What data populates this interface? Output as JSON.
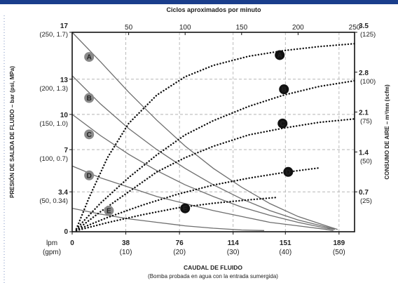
{
  "chart_data": {
    "type": "line",
    "title_top": "Ciclos aproximados por minuto",
    "top_axis_ticks": [
      "50",
      "100",
      "150",
      "200",
      "250"
    ],
    "top_axis_values": [
      50,
      100,
      150,
      200,
      250
    ],
    "top_axis_range": [
      0,
      250
    ],
    "xlabel": "CAUDAL DE FLUIDO",
    "xlabel_sub": "(Bomba probada en agua con la entrada sumergida)",
    "x_unit_label": "lpm",
    "x_unit_label_sub": "(gpm)",
    "x_range": [
      0,
      200
    ],
    "x_ticks": [
      {
        "value": 0,
        "label": "0",
        "sub": ""
      },
      {
        "value": 38,
        "label": "38",
        "sub": "(10)"
      },
      {
        "value": 76,
        "label": "76",
        "sub": "(20)"
      },
      {
        "value": 114,
        "label": "114",
        "sub": "(30)"
      },
      {
        "value": 151,
        "label": "151",
        "sub": "(40)"
      },
      {
        "value": 189,
        "label": "189",
        "sub": "(50)"
      }
    ],
    "ylabel_left": "PRESIÓN DE SALIDA DE FLUIDO – bar (psi, MPa)",
    "y_range_left": [
      0,
      17
    ],
    "y_ticks_left": [
      {
        "value": 0,
        "label": "0",
        "sub": ""
      },
      {
        "value": 3.4,
        "label": "3.4",
        "sub": "(50, 0.34)"
      },
      {
        "value": 7,
        "label": "7",
        "sub": "(100, 0.7)"
      },
      {
        "value": 10,
        "label": "10",
        "sub": "(150, 1.0)"
      },
      {
        "value": 13,
        "label": "13",
        "sub": "(200, 1.3)"
      },
      {
        "value": 17,
        "label": "17",
        "sub": "(250, 1.7)"
      }
    ],
    "ylabel_right": "CONSUMO DE AIRE – m³/mn (scfm)",
    "y_range_right": [
      0,
      3.5
    ],
    "y_ticks_right": [
      {
        "value": 0.7,
        "label": "0.7",
        "sub": "(25)"
      },
      {
        "value": 1.4,
        "label": "1.4",
        "sub": "(50)"
      },
      {
        "value": 2.1,
        "label": "2.1",
        "sub": "(75)"
      },
      {
        "value": 2.8,
        "label": "2.8",
        "sub": "(100)"
      },
      {
        "value": 3.5,
        "label": "3.5",
        "sub": "(125)"
      }
    ],
    "grid": true,
    "pressure_series": [
      {
        "name": "A",
        "x": [
          0,
          20,
          40,
          60,
          80,
          100,
          120,
          140,
          160,
          180,
          188
        ],
        "y": [
          17,
          14.5,
          11.9,
          9.5,
          7.3,
          5.4,
          3.8,
          2.4,
          1.3,
          0.5,
          0.2
        ],
        "label_at": [
          12,
          14.9
        ]
      },
      {
        "name": "B",
        "x": [
          0,
          20,
          40,
          60,
          80,
          100,
          120,
          140,
          160,
          180,
          186
        ],
        "y": [
          13.3,
          10.9,
          8.8,
          7.0,
          5.4,
          4.0,
          2.8,
          1.8,
          1.0,
          0.4,
          0.2
        ],
        "label_at": [
          12,
          11.4
        ]
      },
      {
        "name": "C",
        "x": [
          0,
          20,
          40,
          60,
          80,
          100,
          120,
          140,
          160,
          180,
          186
        ],
        "y": [
          10,
          8.2,
          6.6,
          5.2,
          4.0,
          3.0,
          2.1,
          1.4,
          0.8,
          0.3,
          0.2
        ],
        "label_at": [
          12,
          8.3
        ]
      },
      {
        "name": "D",
        "x": [
          0,
          20,
          40,
          60,
          80,
          100,
          120,
          140,
          160,
          180,
          185
        ],
        "y": [
          5.6,
          4.6,
          3.8,
          3.0,
          2.4,
          1.8,
          1.3,
          0.8,
          0.5,
          0.2,
          0.1
        ],
        "label_at": [
          12,
          4.8
        ]
      },
      {
        "name": "E",
        "x": [
          0,
          20,
          40,
          60,
          80,
          100,
          120,
          136
        ],
        "y": [
          2.0,
          1.5,
          1.1,
          0.8,
          0.5,
          0.3,
          0.15,
          0.1
        ],
        "label_at": [
          26,
          1.8
        ]
      }
    ],
    "air_series": [
      {
        "name": "A",
        "x": [
          3,
          12,
          25,
          40,
          60,
          80,
          100,
          125,
          150,
          175,
          200
        ],
        "y": [
          0.05,
          0.6,
          1.3,
          1.9,
          2.4,
          2.72,
          2.92,
          3.08,
          3.18,
          3.25,
          3.3
        ],
        "label_at": [
          147,
          3.1
        ]
      },
      {
        "name": "B",
        "x": [
          3,
          20,
          40,
          60,
          80,
          100,
          125,
          150,
          175,
          200
        ],
        "y": [
          0.05,
          0.5,
          0.95,
          1.35,
          1.7,
          1.95,
          2.2,
          2.4,
          2.55,
          2.65
        ],
        "label_at": [
          150,
          2.5
        ]
      },
      {
        "name": "C",
        "x": [
          3,
          20,
          40,
          60,
          80,
          100,
          125,
          150,
          175,
          200
        ],
        "y": [
          0.03,
          0.35,
          0.7,
          1.05,
          1.3,
          1.5,
          1.7,
          1.82,
          1.92,
          1.98
        ],
        "label_at": [
          149,
          1.9
        ]
      },
      {
        "name": "D",
        "x": [
          3,
          25,
          50,
          75,
          100,
          125,
          150,
          175
        ],
        "y": [
          0.03,
          0.25,
          0.47,
          0.66,
          0.82,
          0.94,
          1.04,
          1.12
        ],
        "label_at": [
          153,
          1.05
        ]
      },
      {
        "name": "E",
        "x": [
          3,
          25,
          50,
          75,
          100,
          125,
          144
        ],
        "y": [
          0.02,
          0.16,
          0.3,
          0.42,
          0.5,
          0.56,
          0.6
        ],
        "label_at": [
          80,
          0.41
        ]
      }
    ],
    "colors": {
      "pressure_line": "#6e6e6e",
      "air_line": "#111111",
      "grid": "#aaaaaa",
      "frame": "#1a3e8c",
      "pressure_badge": "#8a8a8a",
      "air_badge": "#111111"
    }
  }
}
